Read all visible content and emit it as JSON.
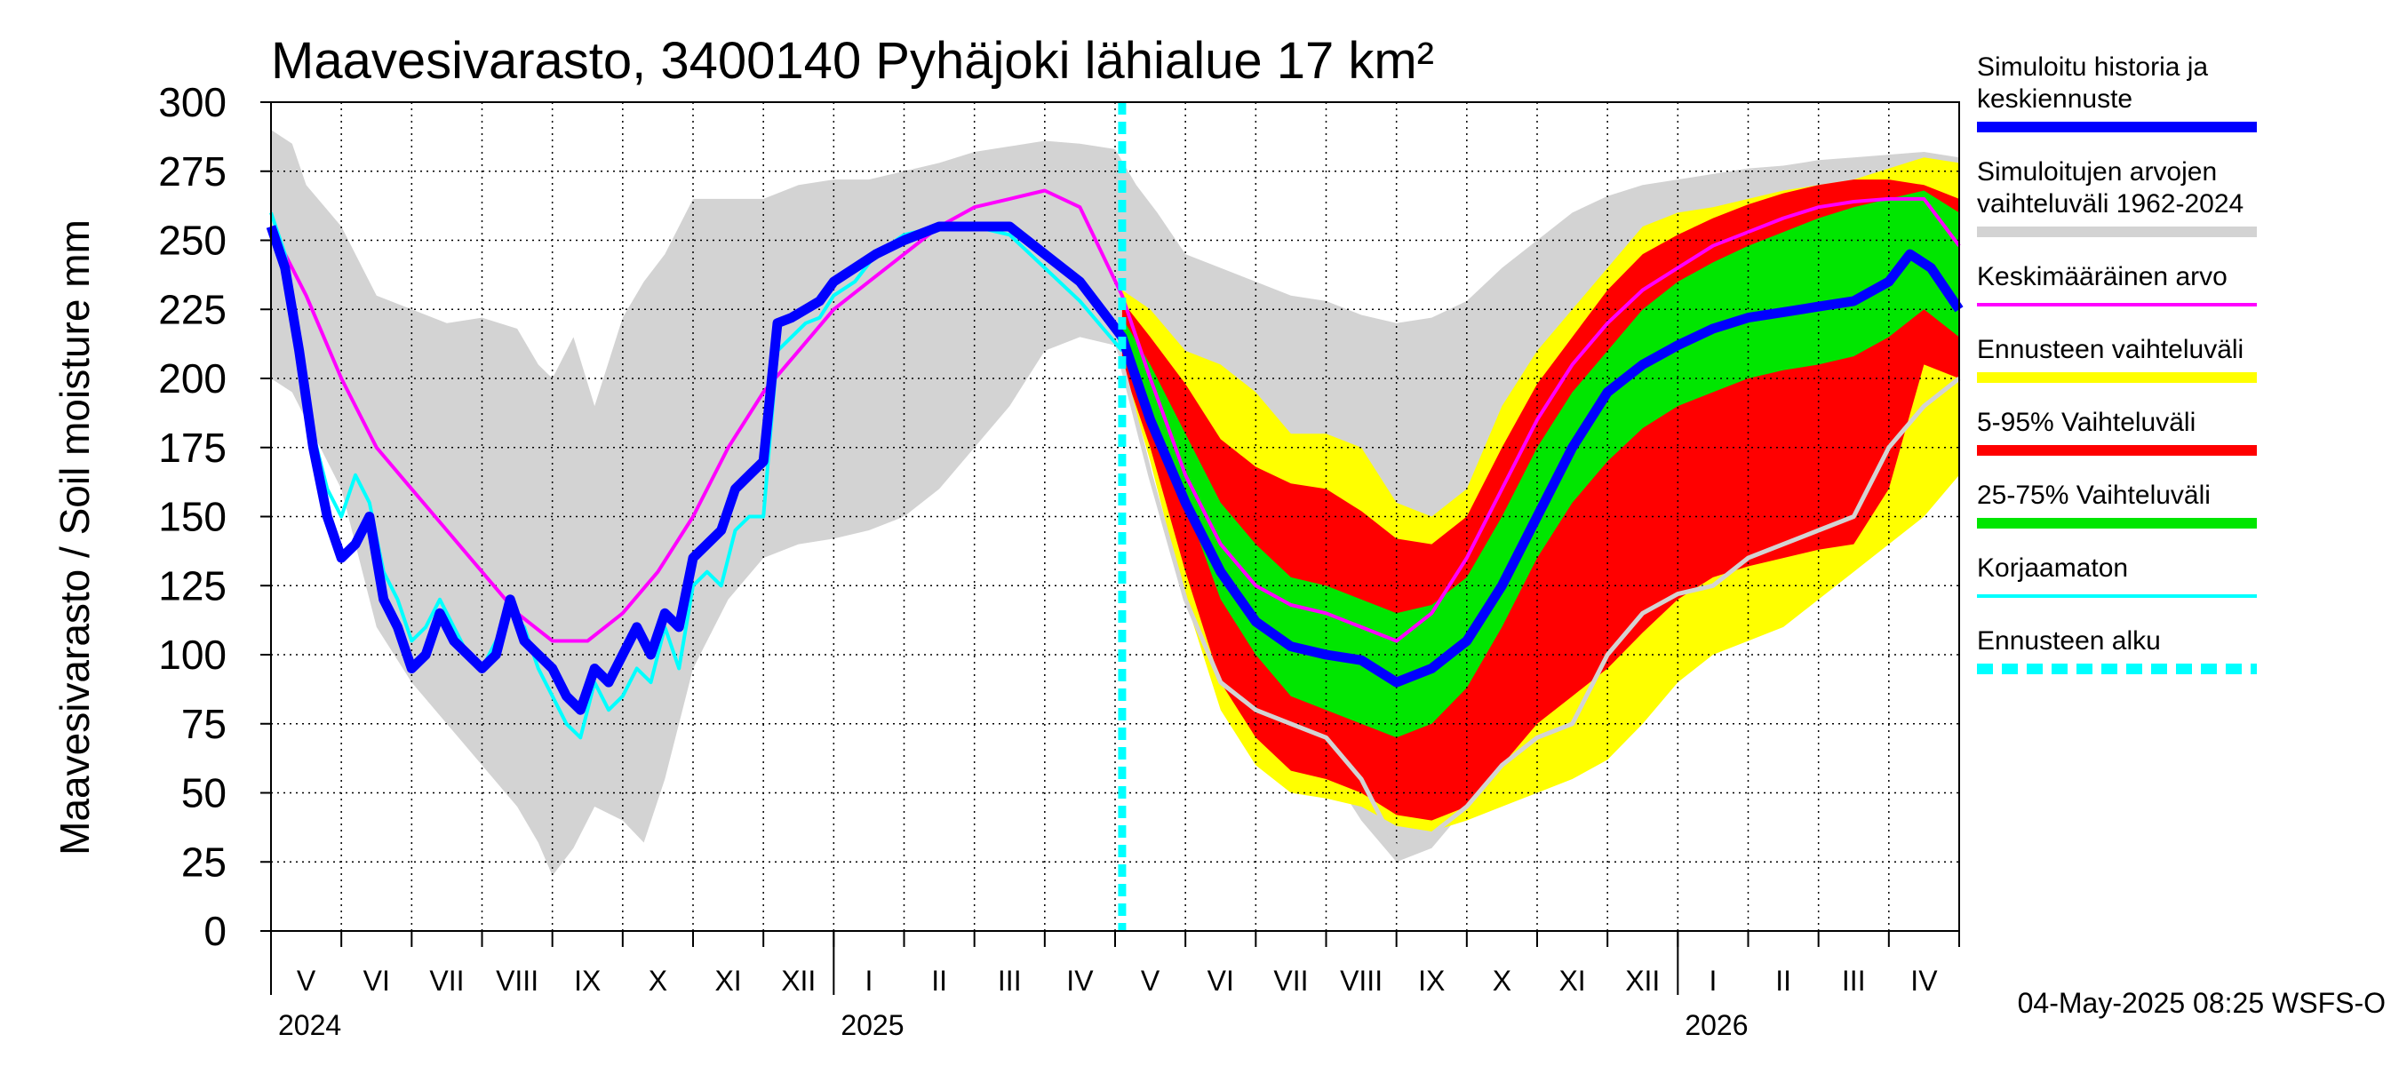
{
  "chart_data": {
    "type": "area",
    "title": "Maavesivarasto, 3400140 Pyhäjoki lähialue 17 km²",
    "ylabel": "Maavesivarasto / Soil moisture   mm",
    "ylim": [
      0,
      300
    ],
    "yticks": [
      0,
      25,
      50,
      75,
      100,
      125,
      150,
      175,
      200,
      225,
      250,
      275,
      300
    ],
    "x_range_months": [
      0,
      24
    ],
    "forecast_start_month": 12.1,
    "month_labels": [
      "V",
      "VI",
      "VII",
      "VIII",
      "IX",
      "X",
      "XI",
      "XII",
      "I",
      "II",
      "III",
      "IV",
      "V",
      "VI",
      "VII",
      "VIII",
      "IX",
      "X",
      "XI",
      "XII",
      "I",
      "II",
      "III",
      "IV"
    ],
    "year_labels": [
      {
        "label": "2024",
        "month": 0
      },
      {
        "label": "2025",
        "month": 8
      },
      {
        "label": "2026",
        "month": 20
      }
    ],
    "colors": {
      "history_range": "#d3d3d3",
      "forecast_range": "#ffff00",
      "p5_95": "#ff0000",
      "p25_75": "#00e600",
      "simulated": "#0000ff",
      "mean": "#ff00ff",
      "uncorrected": "#00ffff",
      "forecast_start": "#00ffff",
      "uncorrected_forecast": "#d3d3d3"
    },
    "series": {
      "history_band": {
        "name": "Simuloitujen arvojen vaihteluväli 1962-2024",
        "x": [
          0,
          0.3,
          0.5,
          1,
          1.3,
          1.5,
          2,
          2.5,
          3,
          3.5,
          3.8,
          4,
          4.3,
          4.6,
          5,
          5.3,
          5.6,
          6,
          6.5,
          7,
          7.5,
          8,
          8.5,
          9,
          9.5,
          10,
          10.5,
          11,
          11.5,
          12,
          12.3,
          12.6,
          13,
          13.5,
          14,
          14.5,
          15,
          15.5,
          16,
          16.5,
          17,
          17.5,
          18,
          18.5,
          19,
          19.5,
          20,
          20.5,
          21,
          21.5,
          22,
          22.5,
          23,
          23.5,
          24
        ],
        "upper": [
          290,
          285,
          270,
          255,
          240,
          230,
          225,
          220,
          222,
          218,
          205,
          200,
          215,
          190,
          222,
          235,
          245,
          265,
          265,
          265,
          270,
          272,
          272,
          275,
          278,
          282,
          284,
          286,
          285,
          283,
          270,
          260,
          245,
          240,
          235,
          230,
          228,
          223,
          220,
          222,
          228,
          240,
          250,
          260,
          266,
          270,
          272,
          274,
          276,
          277,
          279,
          280,
          281,
          282,
          280
        ],
        "lower": [
          200,
          195,
          185,
          160,
          130,
          110,
          90,
          75,
          60,
          45,
          32,
          20,
          30,
          45,
          40,
          32,
          55,
          95,
          120,
          135,
          140,
          142,
          145,
          150,
          160,
          175,
          190,
          210,
          215,
          212,
          190,
          160,
          130,
          110,
          95,
          80,
          60,
          40,
          25,
          30,
          45,
          70,
          100,
          120,
          135,
          145,
          150,
          155,
          160,
          165,
          170,
          175,
          185,
          200,
          210
        ]
      },
      "forecast_band": {
        "name": "Ennusteen vaihteluväli",
        "x": [
          12.1,
          12.5,
          13,
          13.5,
          14,
          14.5,
          15,
          15.5,
          16,
          16.5,
          17,
          17.5,
          18,
          18.5,
          19,
          19.5,
          20,
          20.5,
          21,
          21.5,
          22,
          22.5,
          23,
          23.5,
          24
        ],
        "upper": [
          232,
          225,
          210,
          205,
          195,
          180,
          180,
          175,
          155,
          150,
          160,
          190,
          210,
          225,
          240,
          255,
          260,
          262,
          265,
          268,
          270,
          272,
          276,
          280,
          278
        ],
        "lower": [
          205,
          170,
          120,
          80,
          60,
          50,
          48,
          45,
          38,
          36,
          40,
          45,
          50,
          55,
          62,
          75,
          90,
          100,
          105,
          110,
          120,
          130,
          140,
          150,
          165
        ]
      },
      "p5_95_band": {
        "name": "5-95% Vaihteluväli",
        "x": [
          12.1,
          12.5,
          13,
          13.5,
          14,
          14.5,
          15,
          15.5,
          16,
          16.5,
          17,
          17.5,
          18,
          18.5,
          19,
          19.5,
          20,
          20.5,
          21,
          21.5,
          22,
          22.5,
          23,
          23.5,
          24
        ],
        "upper": [
          228,
          215,
          198,
          178,
          168,
          162,
          160,
          152,
          142,
          140,
          150,
          175,
          198,
          215,
          232,
          245,
          252,
          258,
          263,
          267,
          270,
          272,
          272,
          270,
          265
        ],
        "lower": [
          205,
          175,
          130,
          90,
          70,
          58,
          55,
          50,
          42,
          40,
          45,
          60,
          75,
          85,
          95,
          108,
          120,
          128,
          132,
          135,
          138,
          140,
          160,
          205,
          200
        ]
      },
      "p25_75_band": {
        "name": "25-75% Vaihteluväli",
        "x": [
          12.1,
          12.5,
          13,
          13.5,
          14,
          14.5,
          15,
          15.5,
          16,
          16.5,
          17,
          17.5,
          18,
          18.5,
          19,
          19.5,
          20,
          20.5,
          21,
          21.5,
          22,
          22.5,
          23,
          23.5,
          24
        ],
        "upper": [
          222,
          205,
          180,
          155,
          140,
          128,
          125,
          120,
          115,
          118,
          128,
          150,
          175,
          195,
          210,
          225,
          235,
          242,
          248,
          253,
          258,
          262,
          265,
          268,
          260
        ],
        "lower": [
          212,
          190,
          155,
          120,
          100,
          85,
          80,
          75,
          70,
          75,
          88,
          110,
          135,
          155,
          170,
          182,
          190,
          195,
          200,
          203,
          205,
          208,
          215,
          225,
          215
        ]
      },
      "simulated": {
        "name": "Simuloitu historia ja keskiennuste",
        "x": [
          0,
          0.2,
          0.4,
          0.6,
          0.8,
          1.0,
          1.2,
          1.4,
          1.6,
          1.8,
          2.0,
          2.2,
          2.4,
          2.6,
          2.8,
          3.0,
          3.2,
          3.4,
          3.6,
          3.8,
          4.0,
          4.2,
          4.4,
          4.6,
          4.8,
          5.0,
          5.2,
          5.4,
          5.6,
          5.8,
          6.0,
          6.2,
          6.4,
          6.6,
          6.8,
          7.0,
          7.2,
          7.4,
          7.6,
          7.8,
          8.0,
          8.3,
          8.6,
          9.0,
          9.5,
          10.0,
          10.5,
          11.0,
          11.5,
          12.1,
          12.5,
          13.0,
          13.5,
          14.0,
          14.5,
          15.0,
          15.5,
          16.0,
          16.5,
          17.0,
          17.5,
          18.0,
          18.5,
          19.0,
          19.5,
          20.0,
          20.5,
          21.0,
          21.5,
          22.0,
          22.5,
          23.0,
          23.3,
          23.6,
          24.0
        ],
        "values": [
          255,
          240,
          210,
          175,
          150,
          135,
          140,
          150,
          120,
          110,
          95,
          100,
          115,
          105,
          100,
          95,
          100,
          120,
          105,
          100,
          95,
          85,
          80,
          95,
          90,
          100,
          110,
          100,
          115,
          110,
          135,
          140,
          145,
          160,
          165,
          170,
          220,
          222,
          225,
          228,
          235,
          240,
          245,
          250,
          255,
          255,
          255,
          245,
          235,
          215,
          185,
          155,
          130,
          112,
          103,
          100,
          98,
          90,
          95,
          105,
          125,
          150,
          175,
          195,
          205,
          212,
          218,
          222,
          224,
          226,
          228,
          235,
          245,
          240,
          225
        ]
      },
      "mean": {
        "name": "Keskimääräinen arvo",
        "x": [
          0,
          0.5,
          1,
          1.5,
          2,
          2.5,
          3,
          3.5,
          4,
          4.5,
          5,
          5.5,
          6,
          6.5,
          7,
          7.5,
          8,
          8.5,
          9,
          9.5,
          10,
          10.5,
          11,
          11.5,
          12.1,
          12.5,
          13,
          13.5,
          14,
          14.5,
          15,
          15.5,
          16,
          16.5,
          17,
          17.5,
          18,
          18.5,
          19,
          19.5,
          20,
          20.5,
          21,
          21.5,
          22,
          22.5,
          23,
          23.5,
          24
        ],
        "values": [
          255,
          230,
          200,
          175,
          160,
          145,
          130,
          115,
          105,
          105,
          115,
          130,
          150,
          175,
          195,
          210,
          225,
          235,
          245,
          255,
          262,
          265,
          268,
          262,
          230,
          200,
          165,
          140,
          125,
          118,
          115,
          110,
          105,
          115,
          135,
          160,
          185,
          205,
          220,
          232,
          240,
          248,
          253,
          258,
          262,
          264,
          265,
          265,
          248
        ]
      },
      "uncorrected": {
        "name": "Korjaamaton",
        "x": [
          0,
          0.2,
          0.4,
          0.6,
          0.8,
          1.0,
          1.2,
          1.4,
          1.6,
          1.8,
          2.0,
          2.2,
          2.4,
          2.6,
          2.8,
          3.0,
          3.2,
          3.4,
          3.6,
          3.8,
          4.0,
          4.2,
          4.4,
          4.6,
          4.8,
          5.0,
          5.2,
          5.4,
          5.6,
          5.8,
          6.0,
          6.2,
          6.4,
          6.6,
          6.8,
          7.0,
          7.2,
          7.4,
          7.6,
          7.8,
          8.0,
          8.3,
          8.6,
          9.0,
          9.5,
          10.0,
          10.5,
          11.0,
          11.5,
          12.1
        ],
        "values": [
          260,
          245,
          215,
          180,
          160,
          150,
          165,
          155,
          130,
          120,
          105,
          110,
          120,
          110,
          100,
          95,
          105,
          115,
          110,
          95,
          85,
          75,
          70,
          90,
          80,
          85,
          95,
          90,
          110,
          95,
          125,
          130,
          125,
          145,
          150,
          150,
          210,
          215,
          220,
          222,
          230,
          235,
          245,
          252,
          255,
          255,
          252,
          240,
          228,
          210
        ]
      },
      "uncorrected_forecast": {
        "name": "",
        "x": [
          12.1,
          12.5,
          13,
          13.5,
          14,
          14.5,
          15,
          15.5,
          16,
          16.5,
          17,
          17.5,
          18,
          18.5,
          19,
          19.5,
          20,
          20.5,
          21,
          21.5,
          22,
          22.5,
          23,
          23.5,
          24
        ],
        "values": [
          205,
          165,
          120,
          90,
          80,
          75,
          70,
          55,
          30,
          35,
          45,
          60,
          70,
          75,
          100,
          115,
          122,
          125,
          135,
          140,
          145,
          150,
          175,
          190,
          200
        ]
      }
    },
    "legend": [
      {
        "label": "Simuloitu historia ja keskiennuste",
        "color": "#0000ff",
        "style": "thick"
      },
      {
        "label": "Simuloitujen arvojen vaihteluväli 1962-2024",
        "color": "#d3d3d3",
        "style": "thick"
      },
      {
        "label": "Keskimääräinen arvo",
        "color": "#ff00ff",
        "style": "line"
      },
      {
        "label": "Ennusteen vaihteluväli",
        "color": "#ffff00",
        "style": "thick"
      },
      {
        "label": "5-95% Vaihteluväli",
        "color": "#ff0000",
        "style": "thick"
      },
      {
        "label": "25-75% Vaihteluväli",
        "color": "#00e600",
        "style": "thick"
      },
      {
        "label": "Korjaamaton",
        "color": "#00ffff",
        "style": "line"
      },
      {
        "label": "Ennusteen alku",
        "color": "#00ffff",
        "style": "dashed"
      }
    ],
    "footer": "04-May-2025 08:25 WSFS-O"
  }
}
